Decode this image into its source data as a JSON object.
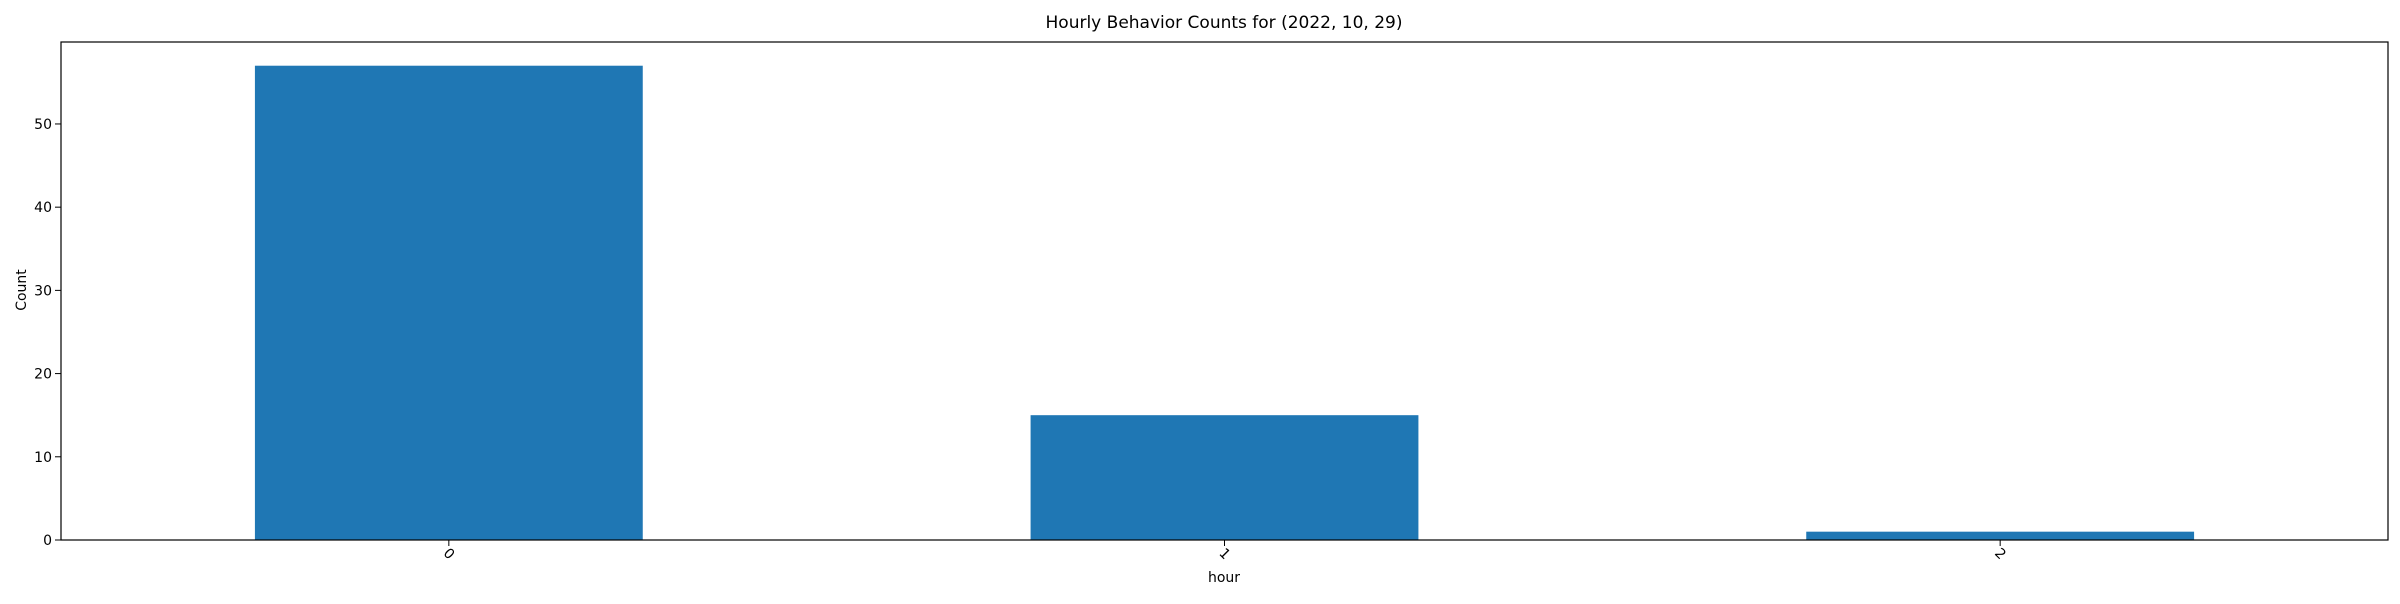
{
  "chart_data": {
    "type": "bar",
    "title": "Hourly Behavior Counts for (2022, 10, 29)",
    "xlabel": "hour",
    "ylabel": "Count",
    "categories": [
      "0",
      "1",
      "2"
    ],
    "values": [
      57,
      15,
      1
    ],
    "ylim": [
      0,
      59.85
    ],
    "yticks": [
      0,
      10,
      20,
      30,
      40,
      50
    ],
    "grid": false,
    "legend": "none",
    "bar_color": "#1f77b4"
  }
}
